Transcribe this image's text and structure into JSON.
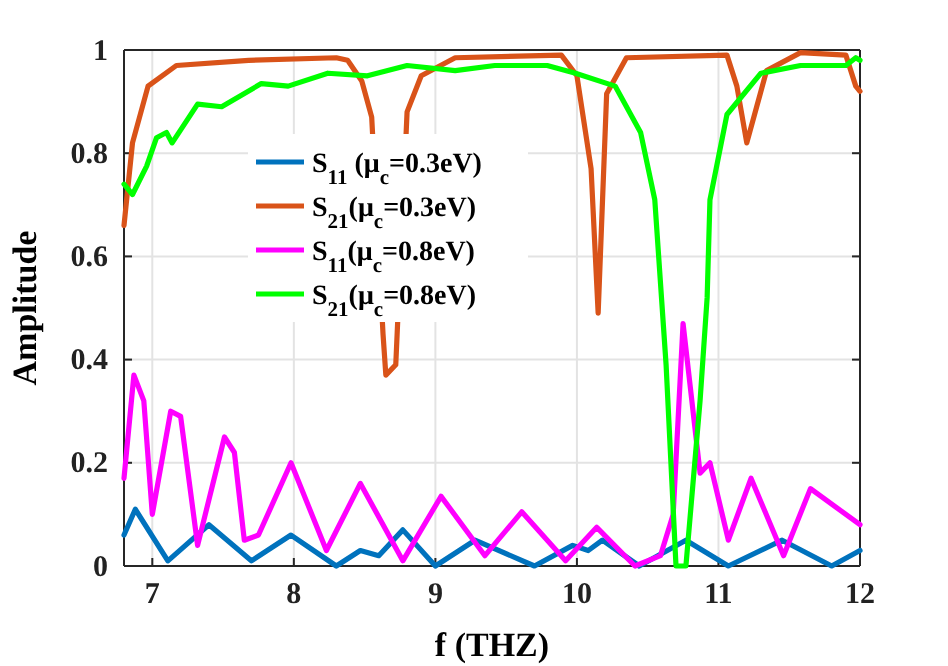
{
  "chart_data": {
    "type": "line",
    "xlabel": "f (THZ)",
    "ylabel": "Amplitude",
    "xlim": [
      6.8,
      12
    ],
    "ylim": [
      0,
      1
    ],
    "xticks": [
      7,
      8,
      9,
      10,
      11,
      12
    ],
    "yticks": [
      0,
      0.2,
      0.4,
      0.6,
      0.8,
      1
    ],
    "grid": true,
    "legend": "left",
    "line_style": "solid",
    "marker": "none",
    "series": [
      {
        "name": "S$_{11}$ (μ$_{c}$=0.3eV)",
        "color": "#0072bd",
        "x": [
          6.8,
          6.88,
          7.11,
          7.4,
          7.7,
          7.98,
          8.3,
          8.47,
          8.6,
          8.77,
          9.0,
          9.28,
          9.7,
          9.97,
          10.08,
          10.18,
          10.44,
          10.77,
          11.07,
          11.45,
          11.8,
          12
        ],
        "values": [
          0.06,
          0.11,
          0.01,
          0.08,
          0.01,
          0.06,
          0.0,
          0.03,
          0.02,
          0.07,
          0.0,
          0.05,
          0.0,
          0.04,
          0.03,
          0.05,
          0.0,
          0.05,
          0.0,
          0.05,
          0.0,
          0.03
        ]
      },
      {
        "name": "S$_{21}$(μ$_{c}$=0.3eV)",
        "color": "#d95319",
        "x": [
          6.8,
          6.86,
          6.97,
          7.17,
          7.68,
          8.3,
          8.38,
          8.48,
          8.55,
          8.63,
          8.65,
          8.72,
          8.8,
          8.9,
          9.14,
          9.89,
          10.0,
          10.1,
          10.15,
          10.21,
          10.35,
          11.06,
          11.13,
          11.2,
          11.27,
          11.34,
          11.58,
          11.9,
          11.97,
          12
        ],
        "values": [
          0.66,
          0.82,
          0.93,
          0.97,
          0.98,
          0.985,
          0.98,
          0.94,
          0.87,
          0.45,
          0.37,
          0.39,
          0.88,
          0.95,
          0.985,
          0.99,
          0.95,
          0.77,
          0.49,
          0.915,
          0.985,
          0.99,
          0.93,
          0.82,
          0.89,
          0.96,
          0.995,
          0.99,
          0.93,
          0.92
        ]
      },
      {
        "name": "S$_{11}$(μ$_{c}$=0.8eV)",
        "color": "#ff00ff",
        "x": [
          6.8,
          6.87,
          6.94,
          7.0,
          7.13,
          7.2,
          7.32,
          7.51,
          7.58,
          7.65,
          7.75,
          7.98,
          8.23,
          8.47,
          8.77,
          9.04,
          9.35,
          9.61,
          9.92,
          10.14,
          10.41,
          10.59,
          10.68,
          10.75,
          10.87,
          10.94,
          11.07,
          11.23,
          11.46,
          11.65,
          12
        ],
        "values": [
          0.17,
          0.37,
          0.32,
          0.1,
          0.3,
          0.29,
          0.04,
          0.25,
          0.22,
          0.05,
          0.06,
          0.2,
          0.03,
          0.16,
          0.01,
          0.135,
          0.02,
          0.105,
          0.01,
          0.075,
          0.0,
          0.02,
          0.1,
          0.47,
          0.18,
          0.2,
          0.05,
          0.17,
          0.02,
          0.15,
          0.08
        ]
      },
      {
        "name": "S$_{21}$(μ$_{c}$=0.8eV)",
        "color": "#00ff00",
        "x": [
          6.8,
          6.86,
          6.96,
          7.03,
          7.1,
          7.14,
          7.32,
          7.49,
          7.77,
          7.96,
          8.24,
          8.52,
          8.8,
          9.14,
          9.42,
          9.79,
          9.99,
          10.27,
          10.45,
          10.55,
          10.63,
          10.7,
          10.77,
          10.87,
          10.92,
          10.94,
          11.06,
          11.3,
          11.58,
          11.9,
          11.97,
          12
        ],
        "values": [
          0.74,
          0.72,
          0.775,
          0.83,
          0.84,
          0.82,
          0.895,
          0.89,
          0.935,
          0.93,
          0.955,
          0.95,
          0.97,
          0.96,
          0.97,
          0.97,
          0.955,
          0.93,
          0.84,
          0.71,
          0.39,
          0.0,
          0.0,
          0.32,
          0.52,
          0.71,
          0.875,
          0.955,
          0.97,
          0.97,
          0.985,
          0.98
        ]
      }
    ]
  }
}
